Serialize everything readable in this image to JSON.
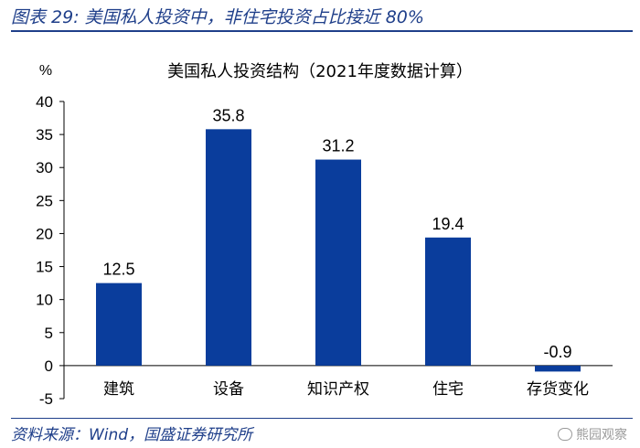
{
  "figure_title": "图表 29:  美国私人投资中，非住宅投资占比接近 80%",
  "source": "资料来源：Wind，国盛证券研究所",
  "watermark": "熊园观察",
  "colors": {
    "bar": "#0a3d9c",
    "text": "#000000",
    "title_blue": "#1f3f8a"
  },
  "chart_data": {
    "type": "bar",
    "title": "美国私人投资结构（2021年度数据计算）",
    "ylabel": "%",
    "categories": [
      "建筑",
      "设备",
      "知识产权",
      "住宅",
      "存货变化"
    ],
    "values": [
      12.5,
      35.8,
      31.2,
      19.4,
      -0.9
    ],
    "value_labels": [
      "12.5",
      "35.8",
      "31.2",
      "19.4",
      "-0.9"
    ],
    "ylim": [
      -5,
      40
    ],
    "yticks": [
      -5,
      0,
      5,
      10,
      15,
      20,
      25,
      30,
      35,
      40
    ],
    "grid": false,
    "legend": "none"
  }
}
